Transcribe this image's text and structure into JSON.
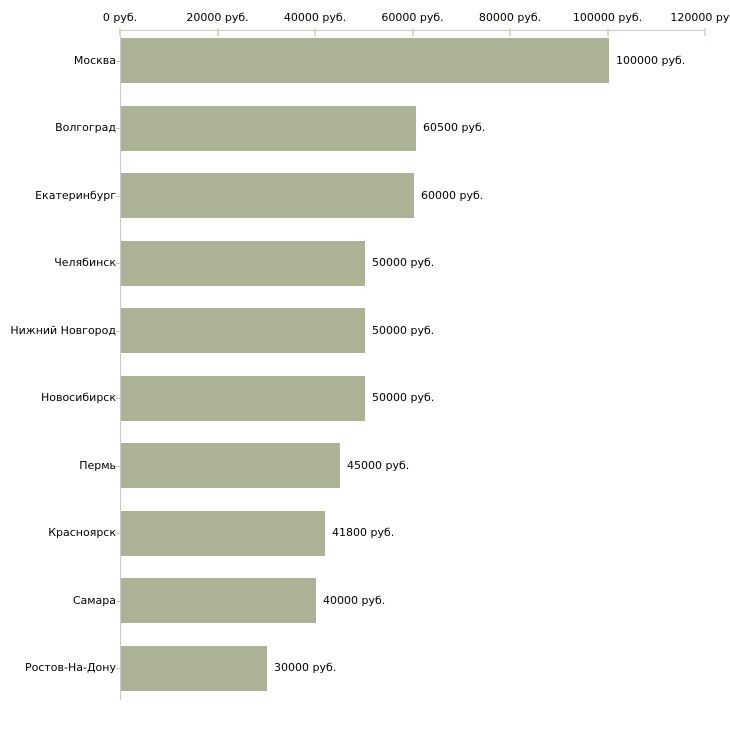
{
  "chart_data": {
    "type": "bar",
    "orientation": "horizontal",
    "title": "",
    "xlabel": "",
    "ylabel": "",
    "categories": [
      "Москва",
      "Волгоград",
      "Екатеринбург",
      "Челябинск",
      "Нижний Новгород",
      "Новосибирск",
      "Пермь",
      "Красноярск",
      "Самара",
      "Ростов-На-Дону"
    ],
    "values": [
      100000,
      60500,
      60000,
      50000,
      50000,
      50000,
      45000,
      41800,
      40000,
      30000
    ],
    "value_labels": [
      "100000 руб.",
      "60500 руб.",
      "60000 руб.",
      "50000 руб.",
      "50000 руб.",
      "50000 руб.",
      "45000 руб.",
      "41800 руб.",
      "40000 руб.",
      "30000 руб."
    ],
    "x_axis": {
      "position": "top",
      "range": [
        0,
        120000
      ],
      "ticks": [
        0,
        20000,
        40000,
        60000,
        80000,
        100000,
        120000
      ],
      "tick_labels": [
        "0 руб.",
        "20000 руб.",
        "40000 руб.",
        "60000 руб.",
        "80000 руб.",
        "100000 руб.",
        "120000 руб."
      ]
    },
    "grid": false,
    "legend": false,
    "colors": {
      "bar": "#acb296",
      "axis_line": "#c9c9c9",
      "axis_tick": "#d9dcc2",
      "category_tick": "#c9cbb8",
      "text": "#000000",
      "background": "#ffffff"
    }
  }
}
